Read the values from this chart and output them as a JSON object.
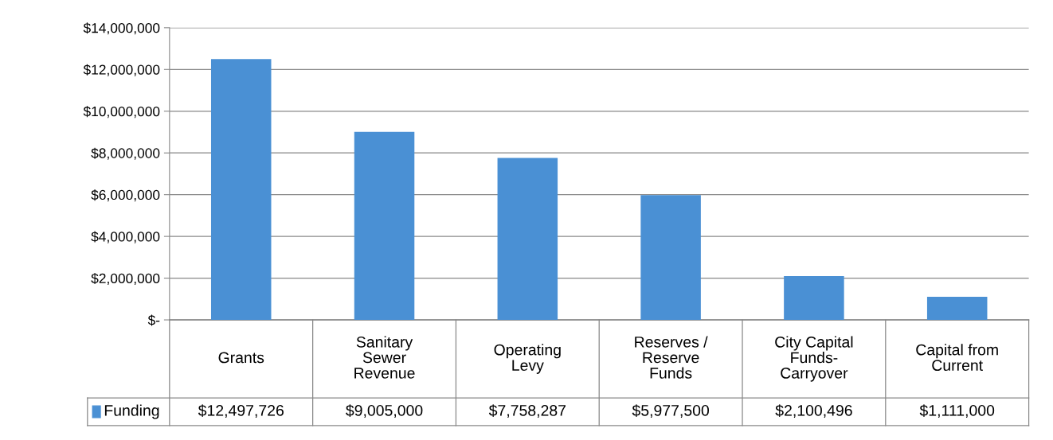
{
  "chart_data": {
    "type": "bar",
    "categories": [
      "Grants",
      "Sanitary\nSewer\nRevenue",
      "Operating\nLevy",
      "Reserves /\nReserve\nFunds",
      "City Capital\nFunds-\nCarryover",
      "Capital from\nCurrent"
    ],
    "series": [
      {
        "name": "Funding",
        "color": "#4a90d4",
        "values": [
          12497726,
          9005000,
          7758287,
          5977500,
          2100496,
          1111000
        ],
        "value_labels": [
          "$12,497,726",
          "$9,005,000",
          "$7,758,287",
          "$5,977,500",
          "$2,100,496",
          "$1,111,000"
        ]
      }
    ],
    "ylim": [
      0,
      14000000
    ],
    "yticks": [
      {
        "value": 0,
        "label": "$-"
      },
      {
        "value": 2000000,
        "label": "$2,000,000"
      },
      {
        "value": 4000000,
        "label": "$4,000,000"
      },
      {
        "value": 6000000,
        "label": "$6,000,000"
      },
      {
        "value": 8000000,
        "label": "$8,000,000"
      },
      {
        "value": 10000000,
        "label": "$10,000,000"
      },
      {
        "value": 12000000,
        "label": "$12,000,000"
      },
      {
        "value": 14000000,
        "label": "$14,000,000"
      }
    ],
    "grid": "y"
  }
}
